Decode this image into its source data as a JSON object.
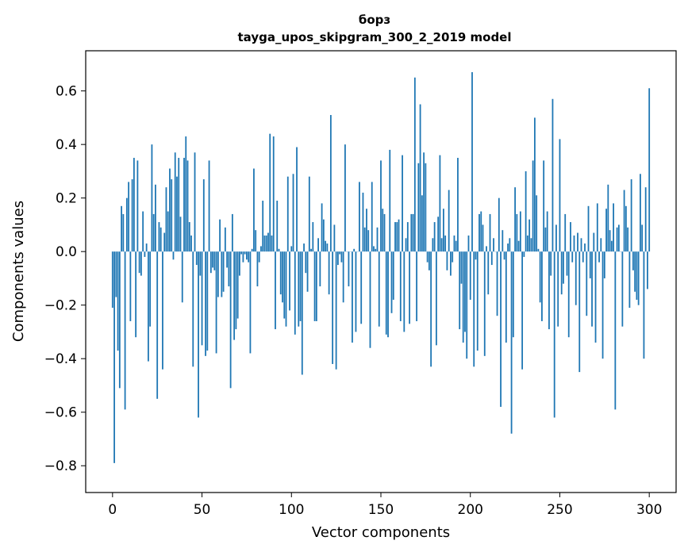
{
  "chart_data": {
    "type": "bar",
    "title": "борз",
    "subtitle": "tayga_upos_skipgram_300_2_2019 model",
    "xlabel": "Vector components",
    "ylabel": "Components values",
    "xlim": [
      -15,
      315
    ],
    "ylim": [
      -0.9,
      0.75
    ],
    "xticks": [
      0,
      50,
      100,
      150,
      200,
      250,
      300
    ],
    "yticks": [
      -0.8,
      -0.6,
      -0.4,
      -0.2,
      0.0,
      0.2,
      0.4,
      0.6
    ],
    "ytick_labels": [
      "−0.8",
      "−0.6",
      "−0.4",
      "−0.2",
      "0.0",
      "0.2",
      "0.4",
      "0.6"
    ],
    "bar_color": "#1f77b4",
    "grid": false,
    "values": [
      -0.21,
      -0.79,
      -0.17,
      -0.37,
      -0.51,
      0.17,
      0.14,
      -0.59,
      0.2,
      0.26,
      -0.26,
      0.27,
      0.35,
      -0.32,
      0.34,
      -0.08,
      -0.09,
      0.15,
      -0.02,
      0.03,
      -0.41,
      -0.28,
      0.4,
      0.14,
      0.25,
      -0.55,
      0.11,
      0.09,
      -0.44,
      0.07,
      0.24,
      0.15,
      0.31,
      0.27,
      -0.03,
      0.37,
      0.28,
      0.35,
      0.13,
      -0.19,
      0.35,
      0.43,
      0.34,
      0.11,
      0.06,
      -0.43,
      0.37,
      -0.05,
      -0.62,
      -0.09,
      -0.35,
      0.27,
      -0.39,
      -0.37,
      0.34,
      -0.08,
      -0.06,
      -0.07,
      -0.38,
      -0.17,
      0.12,
      -0.17,
      -0.15,
      0.09,
      -0.06,
      -0.13,
      -0.51,
      0.14,
      -0.33,
      -0.29,
      -0.25,
      -0.09,
      -0.01,
      -0.04,
      -0.01,
      -0.03,
      -0.04,
      -0.38,
      0.01,
      0.31,
      0.08,
      -0.13,
      -0.04,
      0.02,
      0.19,
      0.06,
      0.06,
      0.07,
      0.44,
      0.06,
      0.43,
      -0.29,
      0.19,
      0.01,
      -0.16,
      -0.19,
      -0.25,
      -0.28,
      0.28,
      -0.22,
      0.02,
      0.29,
      -0.31,
      0.39,
      -0.28,
      -0.26,
      -0.46,
      0.03,
      -0.08,
      -0.15,
      0.28,
      0.01,
      0.11,
      -0.26,
      -0.26,
      0.05,
      -0.13,
      0.18,
      0.12,
      0.04,
      0.03,
      -0.16,
      0.51,
      -0.42,
      0.1,
      -0.44,
      -0.05,
      -0.01,
      -0.04,
      -0.19,
      0.4,
      0.0,
      -0.13,
      0.0,
      -0.34,
      0.01,
      -0.3,
      0.0,
      0.26,
      -0.27,
      0.22,
      0.09,
      0.16,
      0.08,
      -0.36,
      0.26,
      0.02,
      0.01,
      0.09,
      -0.28,
      0.34,
      0.16,
      0.14,
      -0.31,
      -0.32,
      0.38,
      -0.23,
      -0.18,
      0.11,
      0.11,
      0.12,
      -0.26,
      0.36,
      -0.3,
      0.05,
      0.11,
      -0.27,
      0.14,
      0.14,
      0.65,
      -0.26,
      0.33,
      0.55,
      0.21,
      0.37,
      0.33,
      -0.04,
      -0.07,
      -0.43,
      0.05,
      0.11,
      -0.35,
      0.13,
      0.36,
      0.05,
      0.16,
      0.06,
      -0.07,
      0.23,
      -0.09,
      -0.04,
      0.06,
      0.04,
      0.35,
      -0.29,
      -0.12,
      -0.34,
      -0.3,
      -0.4,
      0.06,
      -0.18,
      0.67,
      -0.43,
      -0.03,
      -0.37,
      0.14,
      0.15,
      0.1,
      -0.39,
      0.02,
      -0.16,
      0.14,
      -0.05,
      0.05,
      0.0,
      -0.24,
      0.2,
      -0.58,
      0.08,
      -0.03,
      -0.34,
      0.03,
      0.05,
      -0.68,
      -0.32,
      0.24,
      0.14,
      0.04,
      0.15,
      -0.44,
      -0.02,
      0.3,
      0.06,
      0.12,
      0.05,
      0.34,
      0.5,
      0.21,
      0.01,
      -0.19,
      -0.26,
      0.34,
      0.09,
      0.15,
      -0.29,
      -0.09,
      0.57,
      -0.62,
      0.1,
      -0.28,
      0.42,
      -0.16,
      -0.12,
      0.14,
      -0.09,
      -0.32,
      0.11,
      -0.04,
      0.06,
      -0.2,
      0.07,
      -0.45,
      0.05,
      -0.04,
      0.03,
      -0.24,
      0.17,
      -0.1,
      -0.28,
      0.07,
      -0.34,
      0.18,
      -0.04,
      0.05,
      -0.4,
      -0.1,
      0.16,
      0.25,
      0.08,
      0.04,
      0.18,
      -0.59,
      0.09,
      0.1,
      0.0,
      -0.28,
      0.23,
      0.17,
      0.09,
      -0.21,
      0.27,
      -0.07,
      -0.15,
      -0.18,
      -0.2,
      0.29,
      0.1,
      -0.4,
      0.24,
      -0.14,
      0.61
    ]
  }
}
